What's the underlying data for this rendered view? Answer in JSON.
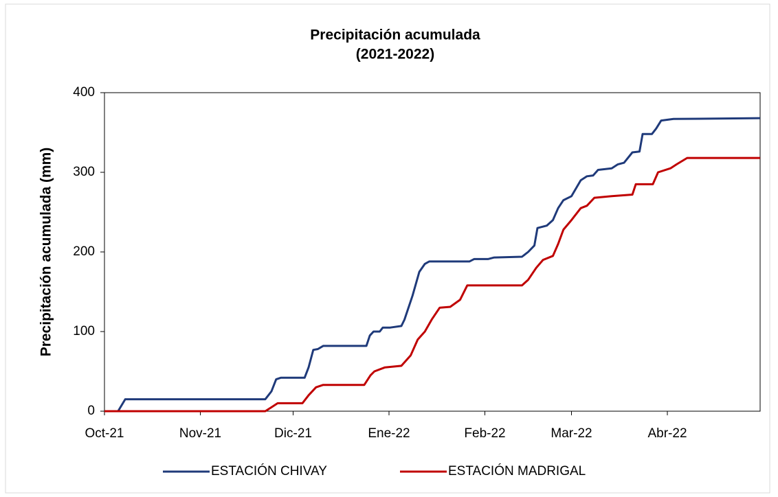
{
  "chart_data": {
    "type": "line",
    "title": "Precipitación acumulada",
    "subtitle": "(2021-2022)",
    "y_label": "Precipitación acumulada (mm)",
    "xlim": [
      0,
      212
    ],
    "xticks": [
      {
        "value": 0,
        "label": "Oct-21"
      },
      {
        "value": 31,
        "label": "Nov-21"
      },
      {
        "value": 61,
        "label": "Dic-21"
      },
      {
        "value": 92,
        "label": "Ene-22"
      },
      {
        "value": 123,
        "label": "Feb-22"
      },
      {
        "value": 151,
        "label": "Mar-22"
      },
      {
        "value": 182,
        "label": "Abr-22"
      }
    ],
    "ylim": [
      0,
      400
    ],
    "yticks": [
      0,
      100,
      200,
      300,
      400
    ],
    "grid": false,
    "legend": "bottom",
    "series": [
      {
        "name": "ESTACIÓN CHIVAY",
        "color": "#1f3a7a",
        "x": [
          0,
          4.4,
          6.7,
          52,
          53,
          54,
          55.5,
          57,
          64.7,
          66,
          67.5,
          69,
          70.7,
          84.7,
          85.8,
          87,
          89,
          90,
          92.4,
          96,
          97,
          99.6,
          101.8,
          103.6,
          105,
          118,
          119.5,
          124,
          126,
          135,
          137,
          139,
          140,
          143,
          145,
          146.7,
          148.4,
          151,
          154,
          156,
          158,
          159.6,
          164,
          166,
          168,
          170.7,
          173,
          174,
          177,
          178.4,
          180,
          184,
          212
        ],
        "values": [
          0,
          0,
          15,
          15,
          20,
          25,
          40,
          42,
          42,
          55,
          77,
          78,
          82,
          82,
          95,
          100,
          100,
          105,
          105,
          107,
          115,
          145,
          175,
          185,
          188,
          188,
          191,
          191,
          193,
          194,
          200,
          208,
          230,
          233,
          240,
          255,
          265,
          270,
          290,
          295,
          296,
          303,
          305,
          310,
          312,
          325,
          326,
          348,
          348,
          355,
          365,
          367,
          368
        ]
      },
      {
        "name": "ESTACIÓN MADRIGAL",
        "color": "#c00000",
        "x": [
          0,
          52,
          54,
          56,
          64,
          66,
          68.4,
          70.7,
          84,
          86,
          87.3,
          90.7,
          96,
          99,
          101.3,
          103.6,
          105.8,
          108.4,
          111.8,
          115,
          117.3,
          135,
          137,
          139.6,
          141.8,
          145,
          146.7,
          148.4,
          151,
          154,
          156,
          158.4,
          164,
          170.7,
          171.8,
          177.3,
          179,
          183,
          185,
          188.4,
          212
        ],
        "values": [
          0,
          0,
          5,
          10,
          10,
          20,
          30,
          33,
          33,
          45,
          50,
          55,
          57,
          70,
          90,
          100,
          115,
          130,
          131,
          140,
          158,
          158,
          165,
          180,
          190,
          195,
          210,
          228,
          240,
          255,
          258,
          268,
          270,
          272,
          285,
          285,
          300,
          305,
          310,
          318,
          318
        ]
      }
    ]
  }
}
